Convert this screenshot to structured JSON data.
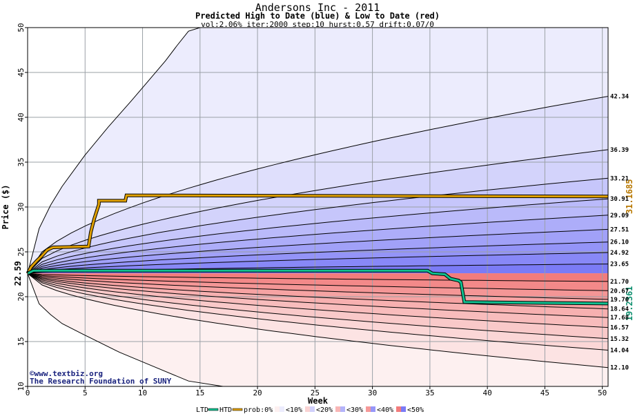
{
  "header": {
    "title": "Andersons Inc - 2011",
    "subtitle": "Predicted High to Date (blue) &  Low to Date (red)",
    "params": "vol:2.06% iter:2000 step:10 hurst:0.57 drift:0.07/0"
  },
  "credits": {
    "copyright": "©www.textbiz.org",
    "foundation": "The Research Foundation of SUNY"
  },
  "legend": {
    "ltd": "LTD",
    "htd": "HTD",
    "prob": "prob:0%",
    "b10": "<10%",
    "b20": "<20%",
    "b30": "<30%",
    "b40": "<40%",
    "b50": "<50%"
  },
  "colors": {
    "high_band_light": "#ececfd",
    "high_band_dark": "#7b7bf6",
    "low_band_light": "#fdf0f0",
    "low_band_dark": "#f27c7c",
    "htd_line": "#e0a000",
    "ltd_line": "#10c090"
  },
  "chart_data": {
    "type": "line",
    "xlabel": "Week",
    "ylabel": "Price ($)",
    "xlim": [
      0,
      50.5
    ],
    "ylim": [
      10,
      50
    ],
    "xticks": [
      0,
      5,
      10,
      15,
      20,
      25,
      30,
      35,
      40,
      45,
      50
    ],
    "yticks": [
      10,
      15,
      20,
      25,
      30,
      35,
      40,
      45,
      50
    ],
    "grid": true,
    "start_price": 22.59,
    "start_label": "22.59",
    "high_quantiles": [
      {
        "end": 23.65,
        "label": "23.65"
      },
      {
        "end": 24.92,
        "label": "24.92"
      },
      {
        "end": 26.1,
        "label": "26.10"
      },
      {
        "end": 27.51,
        "label": "27.51"
      },
      {
        "end": 29.09,
        "label": "29.09"
      },
      {
        "end": 30.91,
        "label": "30.91"
      },
      {
        "end": 33.21,
        "label": "33.21"
      },
      {
        "end": 36.39,
        "label": "36.39"
      },
      {
        "end": 42.34,
        "label": "42.34"
      }
    ],
    "low_quantiles": [
      {
        "end": 21.7,
        "label": "21.70"
      },
      {
        "end": 20.67,
        "label": "20.67"
      },
      {
        "end": 19.7,
        "label": "19.70"
      },
      {
        "end": 18.64,
        "label": "18.64"
      },
      {
        "end": 17.68,
        "label": "17.68"
      },
      {
        "end": 16.57,
        "label": "16.57"
      },
      {
        "end": 15.32,
        "label": "15.32"
      },
      {
        "end": 14.04,
        "label": "14.04"
      },
      {
        "end": 12.1,
        "label": "12.10"
      }
    ],
    "outer_high": [
      [
        0,
        22.59
      ],
      [
        1,
        27.6
      ],
      [
        2,
        30.2
      ],
      [
        3,
        32.3
      ],
      [
        5,
        35.8
      ],
      [
        7,
        38.9
      ],
      [
        9,
        41.8
      ],
      [
        11,
        44.8
      ],
      [
        12,
        46.3
      ],
      [
        13,
        48.0
      ],
      [
        14,
        49.6
      ],
      [
        15,
        50.0
      ]
    ],
    "outer_low": [
      [
        0,
        22.59
      ],
      [
        1,
        19.2
      ],
      [
        2,
        18.0
      ],
      [
        3,
        17.0
      ],
      [
        5,
        15.7
      ],
      [
        8,
        13.8
      ],
      [
        11,
        12.2
      ],
      [
        14,
        10.6
      ],
      [
        17,
        10.0
      ]
    ],
    "htd": {
      "name": "HTD",
      "value_label": "31.1685",
      "points": [
        [
          0,
          22.59
        ],
        [
          0.3,
          23.3
        ],
        [
          0.8,
          24.0
        ],
        [
          1.2,
          24.5
        ],
        [
          1.7,
          25.2
        ],
        [
          2.2,
          25.5
        ],
        [
          5.3,
          25.6
        ],
        [
          5.5,
          27.2
        ],
        [
          5.8,
          28.7
        ],
        [
          6.2,
          30.3
        ],
        [
          6.2,
          30.7
        ],
        [
          8.5,
          30.7
        ],
        [
          8.6,
          31.3
        ],
        [
          50.5,
          31.17
        ]
      ]
    },
    "ltd": {
      "name": "LTD",
      "value_label": "19.2361",
      "points": [
        [
          0,
          22.59
        ],
        [
          0.5,
          22.9
        ],
        [
          34.8,
          22.9
        ],
        [
          35.2,
          22.6
        ],
        [
          36.3,
          22.5
        ],
        [
          36.8,
          22.0
        ],
        [
          37.5,
          21.8
        ],
        [
          37.7,
          21.6
        ],
        [
          38.0,
          19.4
        ],
        [
          50.5,
          19.24
        ]
      ]
    }
  }
}
